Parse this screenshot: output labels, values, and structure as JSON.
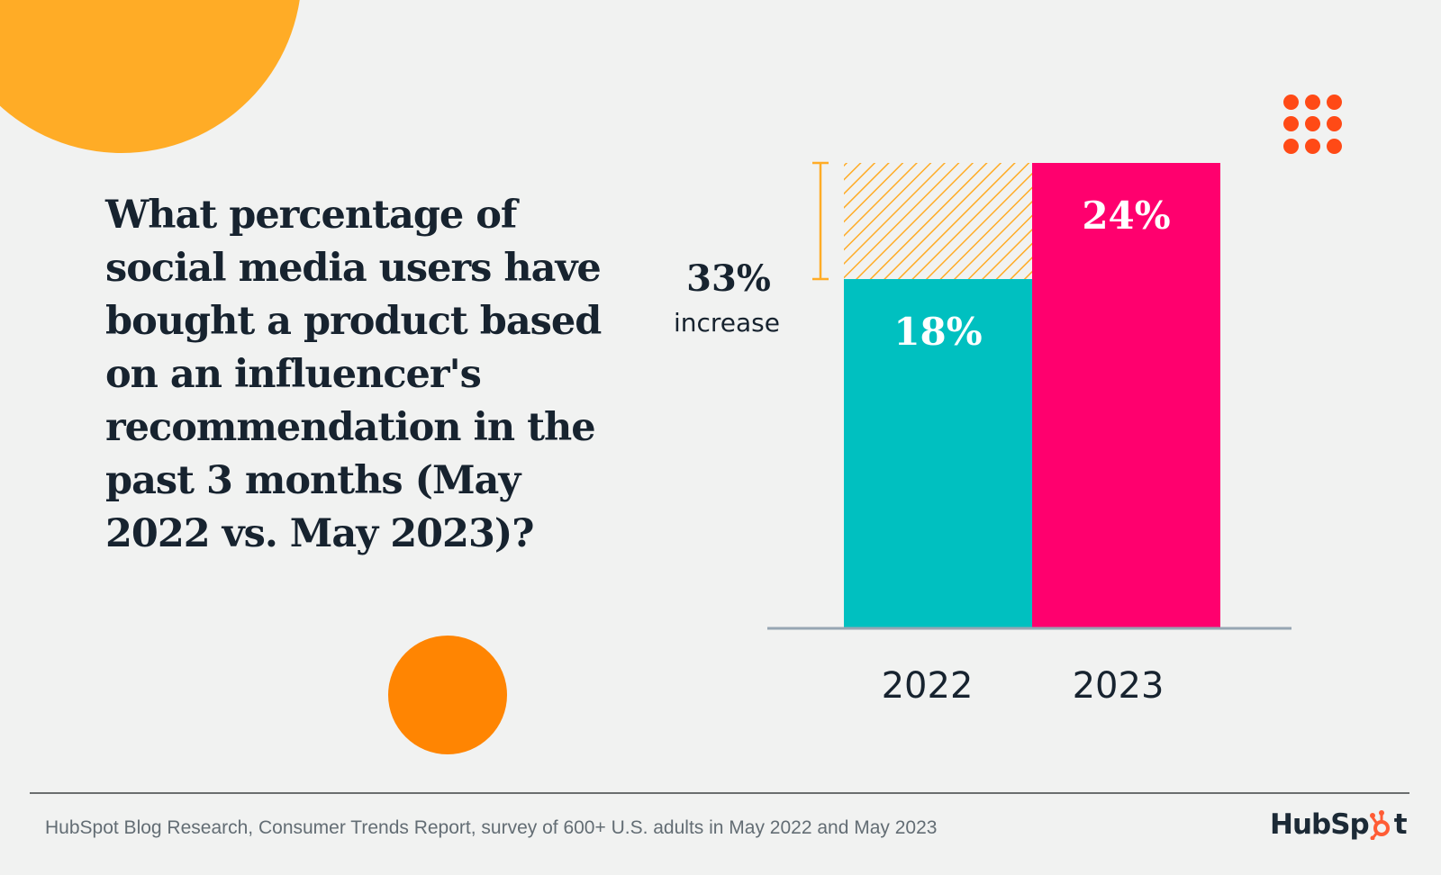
{
  "question": "What percentage of social media users have bought a product based on an influencer's recommendation in the past 3 months (May 2022 vs. May 2023)?",
  "colors": {
    "background": "#f1f2f1",
    "bar_2022": "#00c0c0",
    "bar_2023": "#ff006e",
    "hatch": "#ffac26",
    "bracket": "#ffac26",
    "axis": "#97a6b3",
    "text_dark": "#17232f",
    "decor_yellow": "#ffac26",
    "decor_orange": "#ff8502",
    "decor_dots": "#ff4a16"
  },
  "chart_data": {
    "type": "bar",
    "title": "What percentage of social media users have bought a product based on an influencer's recommendation in the past 3 months (May 2022 vs. May 2023)?",
    "categories": [
      "2022",
      "2023"
    ],
    "values": [
      18,
      24
    ],
    "value_labels": [
      "18%",
      "24%"
    ],
    "units": "%",
    "xlabel": "",
    "ylabel": "",
    "ylim": [
      0,
      24
    ],
    "grid": false,
    "annotation": {
      "value_label": "33%",
      "text": "increase",
      "from": 18,
      "to": 24,
      "style": "hatched gap above 2022 bar with bracket"
    }
  },
  "footer": {
    "source": "HubSpot Blog Research, Consumer Trends Report, survey of 600+ U.S. adults in May 2022 and May 2023",
    "logo_text_left": "HubSp",
    "logo_text_right": "t",
    "logo_icon": "hubspot-sprocket-icon"
  }
}
